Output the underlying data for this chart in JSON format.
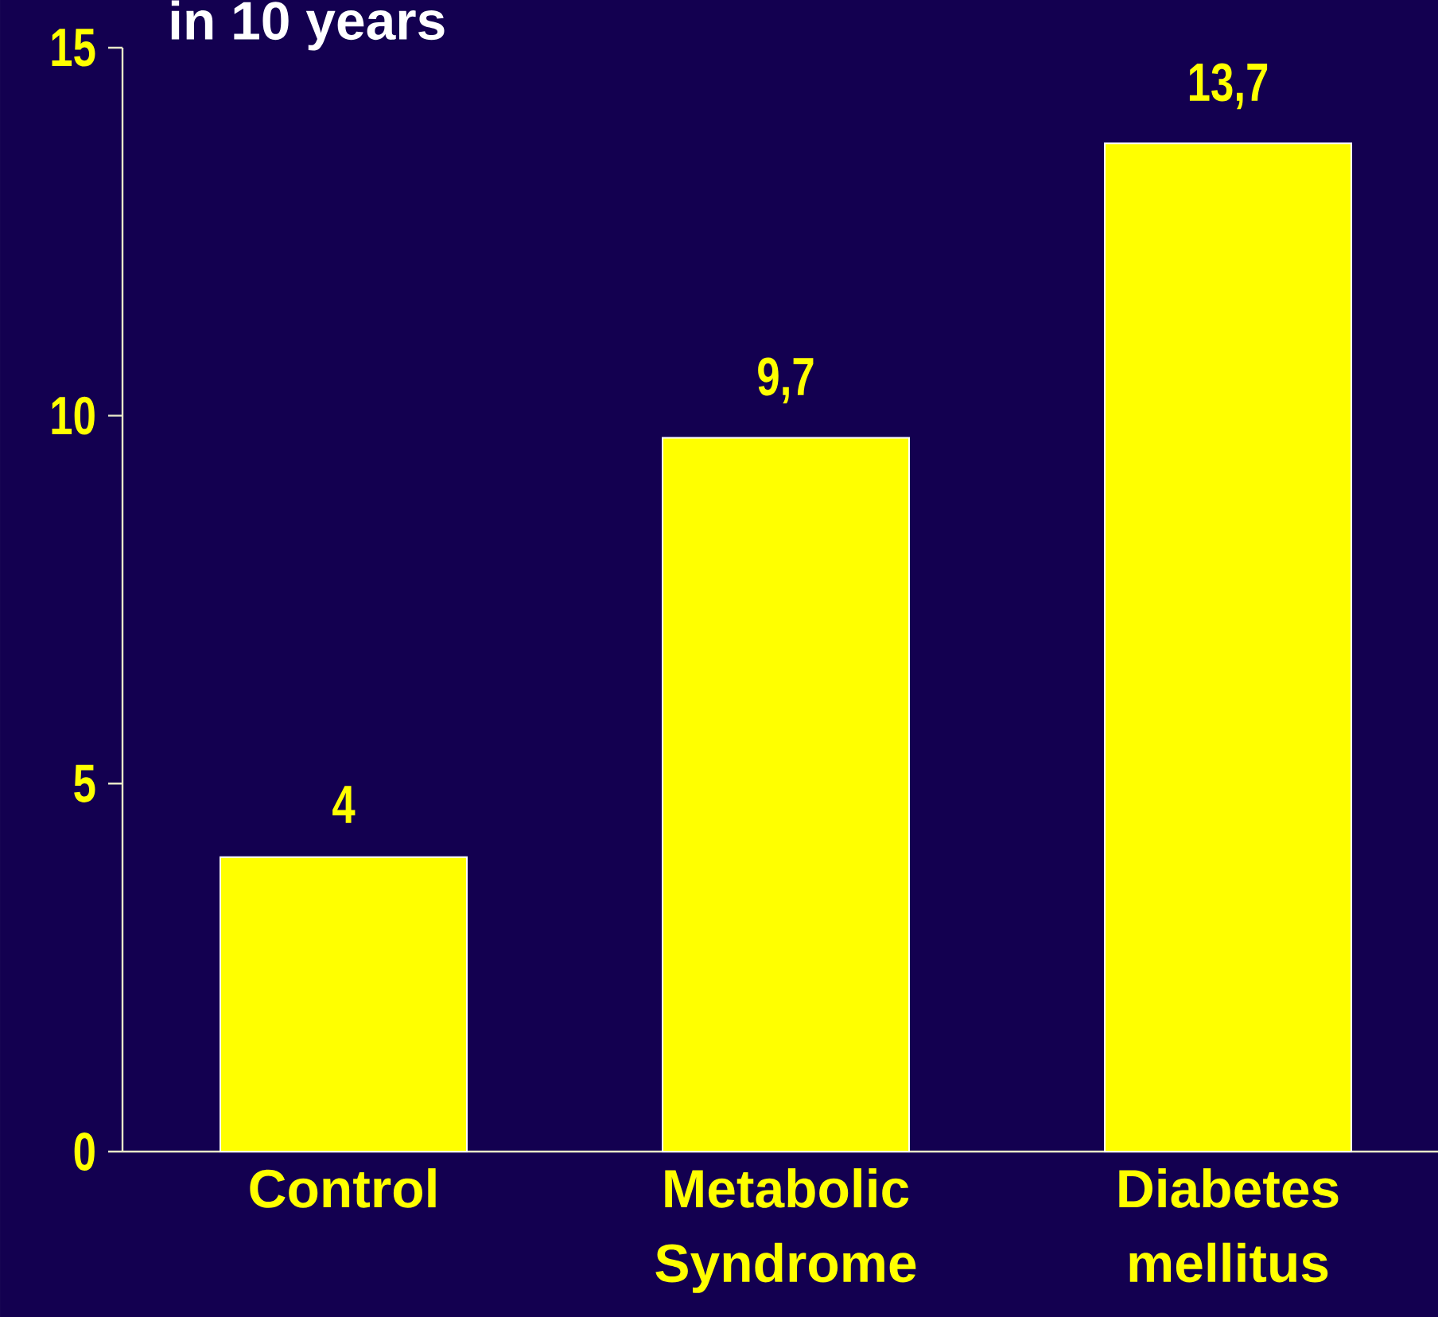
{
  "chart_data": {
    "type": "bar",
    "title": "in 10 years",
    "categories": [
      "Control",
      "Metabolic Syndrome",
      "Diabetes mellitus"
    ],
    "values": [
      4,
      9.7,
      13.7
    ],
    "color": "#ffff00",
    "value_labels": [
      "4",
      "9,7",
      "13,7"
    ],
    "ylim": [
      0,
      15
    ],
    "yticks": [
      0,
      5,
      10,
      15
    ],
    "grid": false
  }
}
